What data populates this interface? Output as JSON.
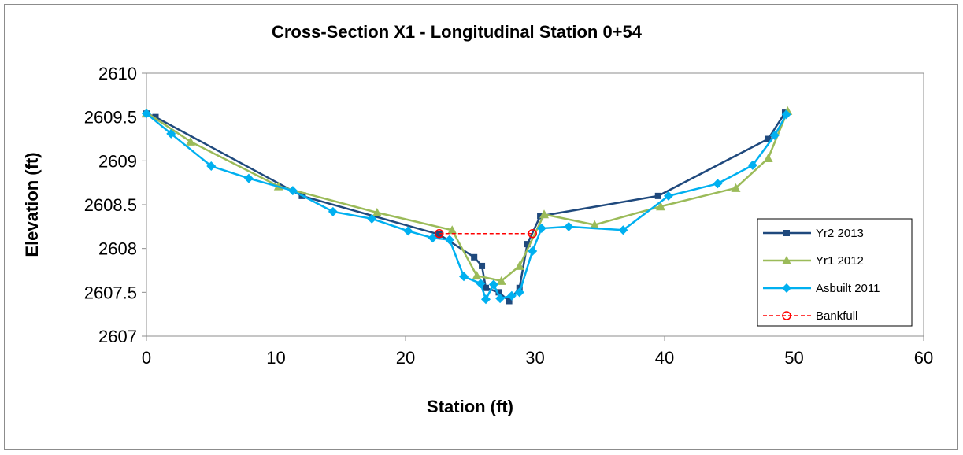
{
  "chart_data": {
    "type": "line",
    "title": "Cross-Section X1 - Longitudinal Station 0+54",
    "xlabel": "Station (ft)",
    "ylabel": "Elevation (ft)",
    "xlim": [
      0,
      60
    ],
    "ylim": [
      2607,
      2610
    ],
    "x_ticks": [
      "0",
      "10",
      "20",
      "30",
      "40",
      "50",
      "60"
    ],
    "y_ticks": [
      "2607",
      "2607.5",
      "2608",
      "2608.5",
      "2609",
      "2609.5",
      "2610"
    ],
    "grid": false,
    "legend_position": "right",
    "series": [
      {
        "name": "Yr2 2013",
        "color": "#1f497d",
        "marker": "square",
        "line_style": "solid",
        "x": [
          0.0,
          0.7,
          12.0,
          22.6,
          25.3,
          25.9,
          26.2,
          27.2,
          28.0,
          28.8,
          29.4,
          30.4,
          39.5,
          48.0,
          49.3
        ],
        "y": [
          2609.54,
          2609.5,
          2608.6,
          2608.16,
          2607.9,
          2607.8,
          2607.55,
          2607.5,
          2607.4,
          2607.55,
          2608.05,
          2608.37,
          2608.6,
          2609.25,
          2609.55
        ]
      },
      {
        "name": "Yr1 2012",
        "color": "#9bbb59",
        "marker": "triangle",
        "line_style": "solid",
        "x": [
          0.0,
          3.4,
          10.2,
          17.8,
          23.6,
          25.5,
          27.4,
          28.8,
          30.7,
          34.6,
          39.7,
          45.5,
          48.0,
          49.5
        ],
        "y": [
          2609.55,
          2609.22,
          2608.71,
          2608.41,
          2608.21,
          2607.69,
          2607.63,
          2607.8,
          2608.39,
          2608.27,
          2608.48,
          2608.69,
          2609.03,
          2609.57
        ]
      },
      {
        "name": "Asbuilt 2011",
        "color": "#00b0f0",
        "marker": "diamond",
        "line_style": "solid",
        "x": [
          0.0,
          1.9,
          5.0,
          7.9,
          11.3,
          14.4,
          17.4,
          20.2,
          22.1,
          23.4,
          24.5,
          25.8,
          26.2,
          26.8,
          27.3,
          28.2,
          28.8,
          29.8,
          30.5,
          32.6,
          36.8,
          40.3,
          44.1,
          46.8,
          48.5,
          49.4
        ],
        "y": [
          2609.54,
          2609.31,
          2608.94,
          2608.8,
          2608.66,
          2608.42,
          2608.34,
          2608.2,
          2608.12,
          2608.1,
          2607.68,
          2607.6,
          2607.42,
          2607.59,
          2607.43,
          2607.46,
          2607.5,
          2607.97,
          2608.23,
          2608.25,
          2608.21,
          2608.6,
          2608.74,
          2608.95,
          2609.29,
          2609.53
        ]
      },
      {
        "name": "Bankfull",
        "color": "#ff0000",
        "marker": "circle-open",
        "line_style": "dashed",
        "x": [
          22.6,
          29.8
        ],
        "y": [
          2608.17,
          2608.17
        ]
      }
    ]
  }
}
